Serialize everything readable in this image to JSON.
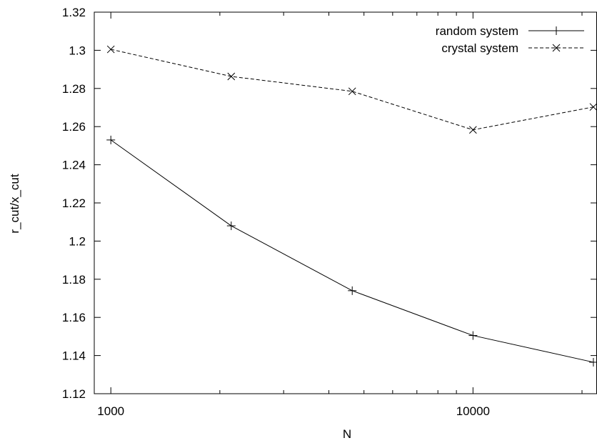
{
  "chart_data": {
    "type": "line",
    "xlabel": "N",
    "ylabel": "r_cut/x_cut",
    "x_scale": "log",
    "xlim": [
      900,
      22000
    ],
    "ylim": [
      1.12,
      1.32
    ],
    "x_ticks": [
      1000,
      10000
    ],
    "x_tick_labels": [
      "1000",
      "10000"
    ],
    "y_ticks": [
      1.12,
      1.14,
      1.16,
      1.18,
      1.2,
      1.22,
      1.24,
      1.26,
      1.28,
      1.3,
      1.32
    ],
    "y_tick_labels": [
      "1.12",
      "1.14",
      "1.16",
      "1.18",
      "1.2",
      "1.22",
      "1.24",
      "1.26",
      "1.28",
      "1.3",
      "1.32"
    ],
    "grid": false,
    "legend_position": "top-right",
    "series": [
      {
        "name": "random system",
        "line_style": "solid",
        "marker": "plus",
        "x": [
          1000,
          2150,
          4640,
          10000,
          21500
        ],
        "y": [
          1.253,
          1.208,
          1.174,
          1.1505,
          1.1365
        ]
      },
      {
        "name": "crystal system",
        "line_style": "dashed",
        "marker": "cross",
        "x": [
          1000,
          2150,
          4640,
          10000,
          21500
        ],
        "y": [
          1.3005,
          1.2863,
          1.2785,
          1.2583,
          1.2703
        ]
      }
    ]
  }
}
